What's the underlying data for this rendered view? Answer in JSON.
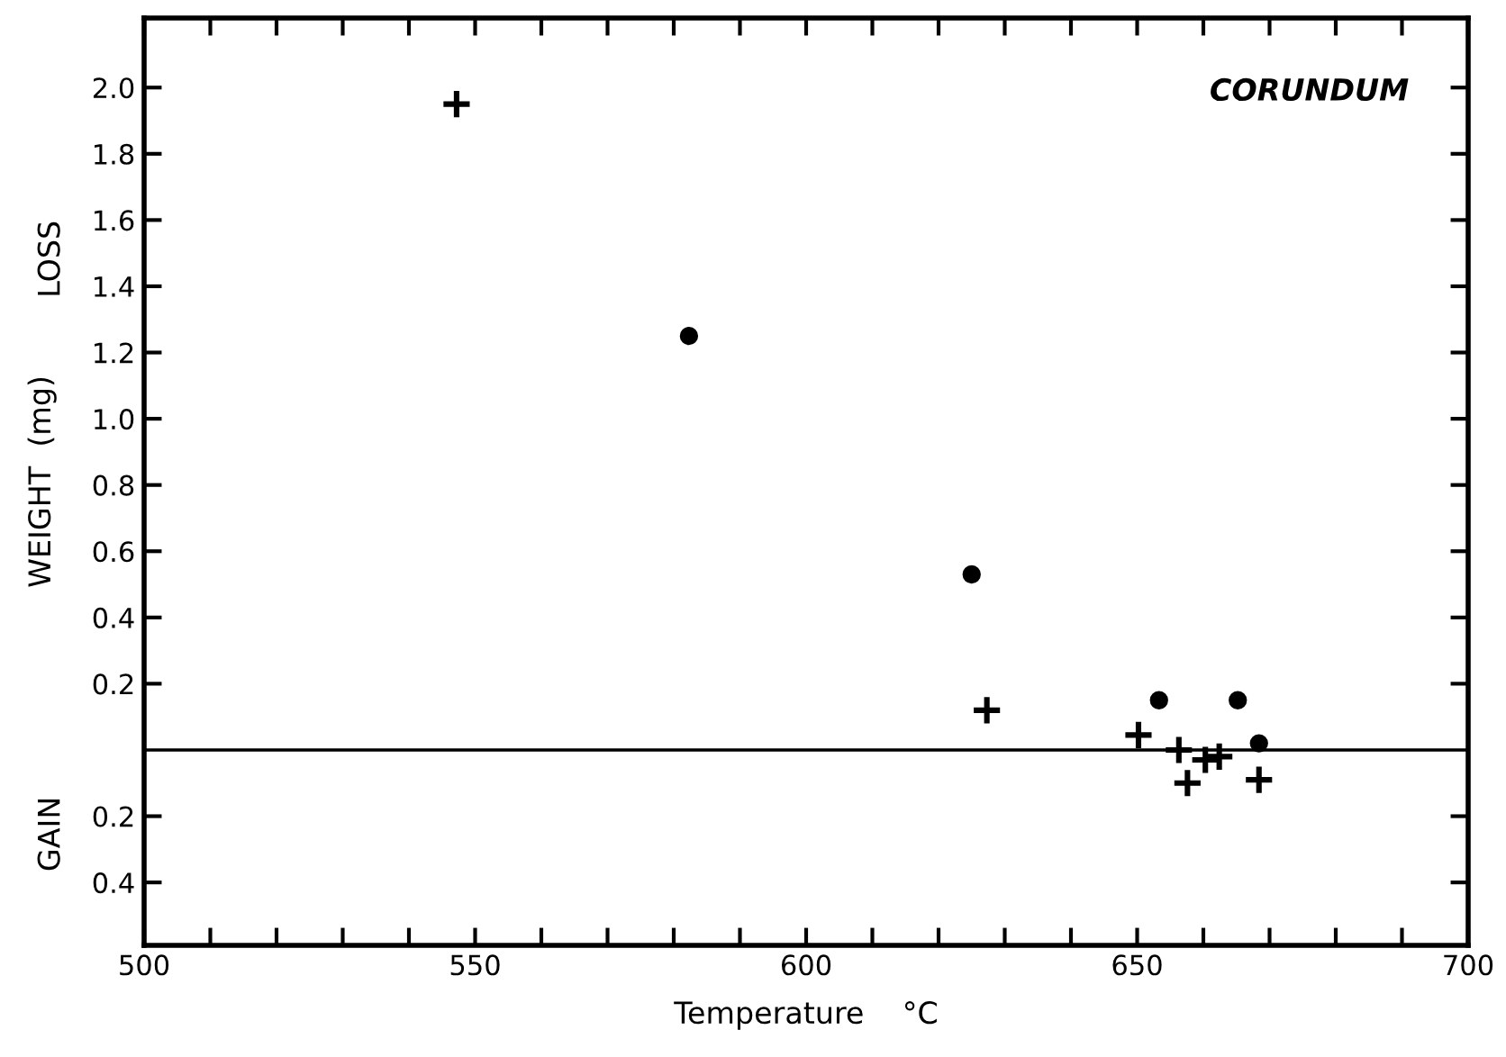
{
  "chart_data": {
    "type": "scatter",
    "xlabel": "Temperature    °C",
    "ylabel": "WEIGHT  (mg)",
    "annotations": [
      "CORUNDUM",
      "LOSS",
      "GAIN"
    ],
    "xlim": [
      500,
      700
    ],
    "ylim": [
      -0.59,
      2.21
    ],
    "xticks": [
      500,
      {
        "value": 510,
        "label": null
      },
      {
        "value": 520,
        "label": null
      },
      {
        "value": 530,
        "label": null
      },
      {
        "value": 540,
        "label": null
      },
      550,
      {
        "value": 560,
        "label": null
      },
      {
        "value": 570,
        "label": null
      },
      {
        "value": 580,
        "label": null
      },
      {
        "value": 590,
        "label": null
      },
      600,
      {
        "value": 610,
        "label": null
      },
      {
        "value": 620,
        "label": null
      },
      {
        "value": 630,
        "label": null
      },
      {
        "value": 640,
        "label": null
      },
      650,
      {
        "value": 660,
        "label": null
      },
      {
        "value": 670,
        "label": null
      },
      {
        "value": 680,
        "label": null
      },
      {
        "value": 690,
        "label": null
      },
      700
    ],
    "yticks": [
      {
        "value": -0.4,
        "label": "0.4"
      },
      {
        "value": -0.2,
        "label": "0.2"
      },
      0.2,
      0.4,
      0.6,
      0.8,
      {
        "value": 1.0,
        "label": "1.0"
      },
      1.2,
      1.4,
      1.6,
      1.8,
      {
        "value": 2.0,
        "label": "2.0"
      }
    ],
    "ref_lines": [
      {
        "axis": "y",
        "value": 0,
        "color": "#000000",
        "line_style": "solid"
      }
    ],
    "grid": false,
    "legend": false,
    "series": [
      {
        "color": "#000000",
        "marker": "cross",
        "x": [
          547.2,
          627.3,
          650.2,
          656.3,
          657.6,
          660.3,
          662.4,
          668.4
        ],
        "values": [
          1.95,
          0.12,
          0.045,
          0.0,
          -0.1,
          -0.03,
          -0.02,
          -0.09
        ]
      },
      {
        "color": "#000000",
        "marker": "circle",
        "x": [
          582.3,
          625.0,
          653.3,
          665.2,
          668.4
        ],
        "values": [
          1.25,
          0.53,
          0.15,
          0.15,
          0.02
        ]
      }
    ]
  }
}
